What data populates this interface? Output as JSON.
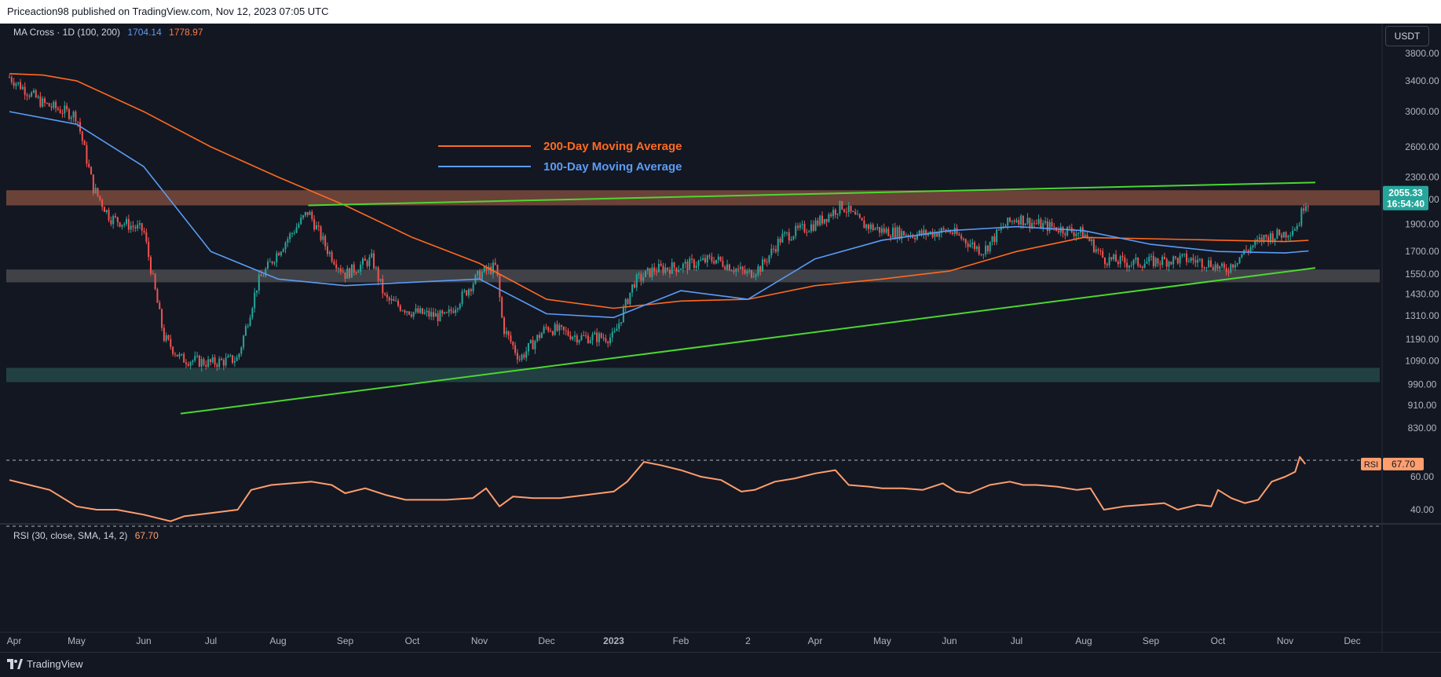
{
  "header": {
    "publisher_text": "Priceaction98 published on TradingView.com, Nov 12, 2023 07:05 UTC"
  },
  "main_legend": {
    "label": "MA Cross · 1D (100, 200)",
    "ma100_value": "1704.14",
    "ma200_value": "1778.97"
  },
  "currency_button": "USDT",
  "price_badge": {
    "value": "2055.33",
    "countdown": "16:54:40"
  },
  "annotations": {
    "ma200_label": "200-Day Moving Average",
    "ma100_label": "100-Day Moving Average"
  },
  "rsi_legend": {
    "label": "RSI (30, close, SMA, 14, 2)",
    "value": "67.70"
  },
  "rsi_badge": {
    "label": "RSI",
    "value": "67.70"
  },
  "footer": {
    "logo_text": "TradingView"
  },
  "colors": {
    "up": "#26a69a",
    "down": "#ef5350",
    "ma100": "#5b9cf6",
    "ma200": "#ff6a1f",
    "trendline": "#4bd731",
    "rsi": "#ff9e6e",
    "resistance_zone": "#7a4a3c",
    "support_zone_gray": "#4a4a4e",
    "support_zone_teal": "#264848"
  },
  "chart_data": [
    {
      "type": "candlestick",
      "pair_currency": "USDT",
      "interval": "1D",
      "y_scale": "log",
      "price_axis_ticks": [
        3800,
        3400,
        3000,
        2600,
        2300,
        2100,
        1900,
        1700,
        1550,
        1430,
        1310,
        1190,
        1090,
        990,
        910,
        830
      ],
      "price_axis_labels": [
        "3800.00",
        "3400.00",
        "3000.00",
        "2600.00",
        "2300.00",
        "2100.00",
        "1900.00",
        "1700.00",
        "1550.00",
        "1430.00",
        "1310.00",
        "1190.00",
        "1090.00",
        "990.00",
        "910.00",
        "830.00"
      ],
      "x_axis_labels": [
        "Apr",
        "May",
        "Jun",
        "Jul",
        "Aug",
        "Sep",
        "Oct",
        "Nov",
        "Dec",
        "2023",
        "Feb",
        "2",
        "Apr",
        "May",
        "Jun",
        "Jul",
        "Aug",
        "Sep",
        "Oct",
        "Nov",
        "Dec"
      ],
      "x_axis_month_index": [
        0,
        1,
        2,
        3,
        4,
        5,
        6,
        7,
        8,
        9,
        10,
        11,
        12,
        13,
        14,
        15,
        16,
        17,
        18,
        19,
        20
      ],
      "approx_close_by_month_index": [
        [
          0.0,
          3450
        ],
        [
          0.5,
          3100
        ],
        [
          1.0,
          2950
        ],
        [
          1.25,
          2200
        ],
        [
          1.5,
          1950
        ],
        [
          2.0,
          1850
        ],
        [
          2.3,
          1200
        ],
        [
          2.55,
          1100
        ],
        [
          3.0,
          1080
        ],
        [
          3.4,
          1100
        ],
        [
          3.7,
          1500
        ],
        [
          4.0,
          1700
        ],
        [
          4.45,
          2000
        ],
        [
          4.75,
          1700
        ],
        [
          5.0,
          1550
        ],
        [
          5.4,
          1650
        ],
        [
          5.6,
          1400
        ],
        [
          6.0,
          1330
        ],
        [
          6.5,
          1300
        ],
        [
          7.0,
          1550
        ],
        [
          7.25,
          1600
        ],
        [
          7.35,
          1250
        ],
        [
          7.6,
          1100
        ],
        [
          8.0,
          1250
        ],
        [
          8.5,
          1200
        ],
        [
          9.0,
          1200
        ],
        [
          9.3,
          1500
        ],
        [
          9.6,
          1580
        ],
        [
          10.0,
          1600
        ],
        [
          10.5,
          1650
        ],
        [
          11.0,
          1550
        ],
        [
          11.2,
          1600
        ],
        [
          11.5,
          1800
        ],
        [
          12.0,
          1900
        ],
        [
          12.4,
          2050
        ],
        [
          12.7,
          1900
        ],
        [
          13.0,
          1850
        ],
        [
          13.5,
          1820
        ],
        [
          14.0,
          1850
        ],
        [
          14.5,
          1700
        ],
        [
          14.8,
          1880
        ],
        [
          15.0,
          1950
        ],
        [
          15.3,
          1900
        ],
        [
          15.6,
          1870
        ],
        [
          16.0,
          1830
        ],
        [
          16.3,
          1650
        ],
        [
          16.7,
          1620
        ],
        [
          17.0,
          1630
        ],
        [
          17.5,
          1650
        ],
        [
          17.9,
          1620
        ],
        [
          18.1,
          1570
        ],
        [
          18.4,
          1700
        ],
        [
          18.7,
          1800
        ],
        [
          19.0,
          1830
        ],
        [
          19.2,
          1900
        ],
        [
          19.3,
          2100
        ],
        [
          19.35,
          2055
        ]
      ],
      "ma200_by_month_index": [
        [
          0.0,
          3500
        ],
        [
          0.5,
          3480
        ],
        [
          1.0,
          3400
        ],
        [
          2.0,
          3000
        ],
        [
          3.0,
          2600
        ],
        [
          4.0,
          2300
        ],
        [
          5.0,
          2050
        ],
        [
          6.0,
          1800
        ],
        [
          7.0,
          1620
        ],
        [
          8.0,
          1400
        ],
        [
          9.0,
          1350
        ],
        [
          10.0,
          1390
        ],
        [
          11.0,
          1400
        ],
        [
          12.0,
          1480
        ],
        [
          13.0,
          1520
        ],
        [
          14.0,
          1570
        ],
        [
          15.0,
          1700
        ],
        [
          16.0,
          1800
        ],
        [
          17.0,
          1790
        ],
        [
          18.0,
          1780
        ],
        [
          19.0,
          1770
        ],
        [
          19.35,
          1779
        ]
      ],
      "ma100_by_month_index": [
        [
          0.0,
          3000
        ],
        [
          1.0,
          2850
        ],
        [
          2.0,
          2400
        ],
        [
          3.0,
          1700
        ],
        [
          4.0,
          1520
        ],
        [
          5.0,
          1480
        ],
        [
          6.0,
          1500
        ],
        [
          7.0,
          1520
        ],
        [
          8.0,
          1320
        ],
        [
          9.0,
          1300
        ],
        [
          10.0,
          1450
        ],
        [
          11.0,
          1400
        ],
        [
          12.0,
          1650
        ],
        [
          13.0,
          1780
        ],
        [
          14.0,
          1850
        ],
        [
          15.0,
          1880
        ],
        [
          16.0,
          1850
        ],
        [
          17.0,
          1750
        ],
        [
          18.0,
          1700
        ],
        [
          19.0,
          1690
        ],
        [
          19.35,
          1704
        ]
      ],
      "zones": [
        {
          "name": "resistance",
          "low": 2050,
          "high": 2180
        },
        {
          "name": "support",
          "low": 1500,
          "high": 1580
        },
        {
          "name": "support",
          "low": 1000,
          "high": 1060
        }
      ],
      "trendlines": [
        {
          "x": [
            4.45,
            19.45
          ],
          "y": [
            2050,
            2250
          ]
        },
        {
          "x": [
            2.55,
            19.45
          ],
          "y": [
            880,
            1590
          ]
        }
      ],
      "last_price": 2055.33
    },
    {
      "type": "line",
      "name": "RSI",
      "ylim": [
        30,
        75
      ],
      "axis_labels": [
        "60.00",
        "40.00"
      ],
      "axis_ticks": [
        60,
        40
      ],
      "bands": [
        70,
        30
      ],
      "values_by_month_index": [
        [
          0.0,
          58
        ],
        [
          0.3,
          55
        ],
        [
          0.6,
          52
        ],
        [
          1.0,
          42
        ],
        [
          1.3,
          40
        ],
        [
          1.6,
          40
        ],
        [
          2.0,
          37
        ],
        [
          2.4,
          33
        ],
        [
          2.6,
          36
        ],
        [
          3.0,
          38
        ],
        [
          3.4,
          40
        ],
        [
          3.6,
          52
        ],
        [
          3.9,
          55
        ],
        [
          4.2,
          56
        ],
        [
          4.5,
          57
        ],
        [
          4.8,
          55
        ],
        [
          5.0,
          50
        ],
        [
          5.3,
          53
        ],
        [
          5.6,
          49
        ],
        [
          5.9,
          46
        ],
        [
          6.2,
          46
        ],
        [
          6.5,
          46
        ],
        [
          6.9,
          47
        ],
        [
          7.1,
          53
        ],
        [
          7.3,
          42
        ],
        [
          7.5,
          48
        ],
        [
          7.8,
          47
        ],
        [
          8.2,
          47
        ],
        [
          8.6,
          49
        ],
        [
          9.0,
          51
        ],
        [
          9.2,
          57
        ],
        [
          9.45,
          69
        ],
        [
          9.7,
          67
        ],
        [
          10.0,
          64
        ],
        [
          10.3,
          60
        ],
        [
          10.6,
          58
        ],
        [
          10.9,
          51
        ],
        [
          11.1,
          52
        ],
        [
          11.4,
          57
        ],
        [
          11.7,
          59
        ],
        [
          12.0,
          62
        ],
        [
          12.3,
          64
        ],
        [
          12.5,
          55
        ],
        [
          12.8,
          54
        ],
        [
          13.0,
          53
        ],
        [
          13.3,
          53
        ],
        [
          13.6,
          52
        ],
        [
          13.9,
          56
        ],
        [
          14.1,
          51
        ],
        [
          14.3,
          50
        ],
        [
          14.6,
          55
        ],
        [
          14.9,
          57
        ],
        [
          15.1,
          55
        ],
        [
          15.3,
          55
        ],
        [
          15.6,
          54
        ],
        [
          15.9,
          52
        ],
        [
          16.1,
          53
        ],
        [
          16.3,
          40
        ],
        [
          16.6,
          42
        ],
        [
          16.9,
          43
        ],
        [
          17.2,
          44
        ],
        [
          17.4,
          40
        ],
        [
          17.7,
          43
        ],
        [
          17.9,
          42
        ],
        [
          18.0,
          52
        ],
        [
          18.2,
          47
        ],
        [
          18.4,
          44
        ],
        [
          18.6,
          46
        ],
        [
          18.8,
          57
        ],
        [
          19.0,
          60
        ],
        [
          19.15,
          63
        ],
        [
          19.22,
          72
        ],
        [
          19.3,
          67.7
        ]
      ],
      "last_value": 67.7
    }
  ]
}
